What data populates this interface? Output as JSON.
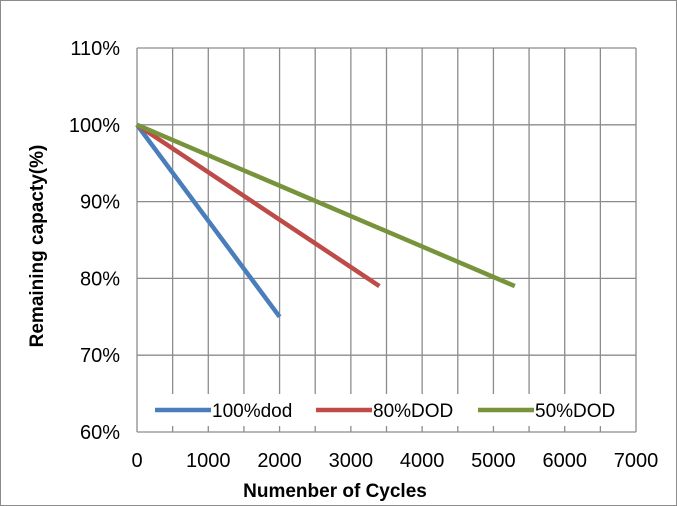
{
  "chart_data": {
    "type": "line",
    "xlabel": "Numenber of Cycles",
    "ylabel": "Remaining capacty(%)",
    "xlim": [
      0,
      7000
    ],
    "ylim": [
      60,
      110
    ],
    "x_ticks": [
      0,
      1000,
      2000,
      3000,
      4000,
      5000,
      6000,
      7000
    ],
    "x_tick_labels": [
      "0",
      "1000",
      "2000",
      "3000",
      "4000",
      "5000",
      "6000",
      "7000"
    ],
    "y_ticks": [
      60,
      70,
      80,
      90,
      100,
      110
    ],
    "y_tick_labels": [
      "60%",
      "70%",
      "80%",
      "90%",
      "100%",
      "110%"
    ],
    "grid": true,
    "legend_position": "bottom-inside",
    "series": [
      {
        "name": "100%dod",
        "color": "#4a7ebb",
        "x": [
          0,
          2000
        ],
        "y": [
          100,
          75
        ]
      },
      {
        "name": "80%DOD",
        "color": "#be4b48",
        "x": [
          0,
          3400
        ],
        "y": [
          100,
          79
        ]
      },
      {
        "name": "50%DOD",
        "color": "#77943c",
        "x": [
          0,
          5300
        ],
        "y": [
          100,
          79
        ]
      }
    ]
  }
}
